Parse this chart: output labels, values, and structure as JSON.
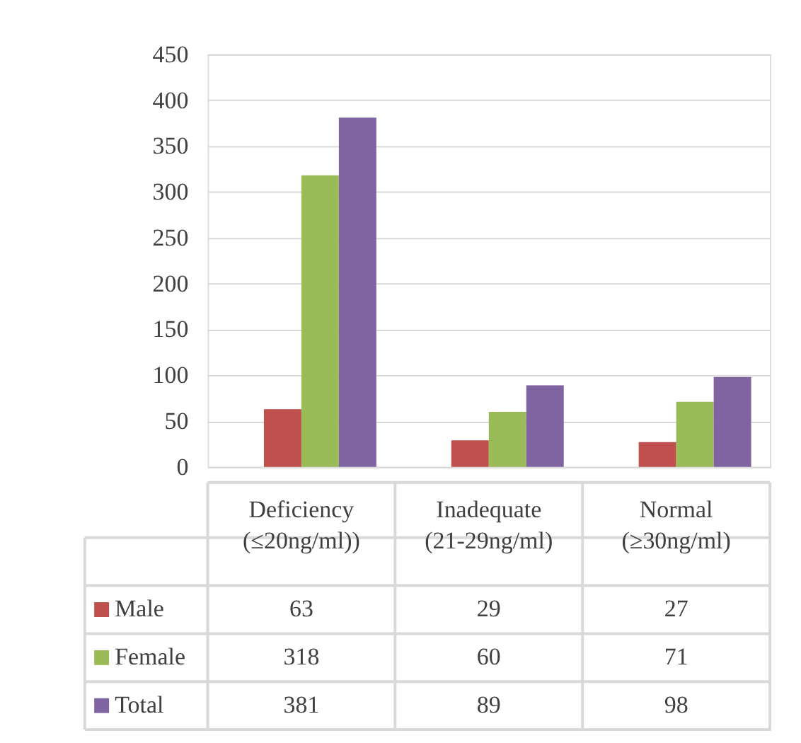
{
  "chart_data": {
    "type": "bar",
    "categories": [
      "Deficiency (≤20ng/ml))",
      "Inadequate (21-29ng/ml)",
      "Normal (≥30ng/ml)"
    ],
    "series": [
      {
        "color": "#4f81bd",
        "values": [
          null,
          null,
          null
        ]
      },
      {
        "name": "Male",
        "color": "#c0504d",
        "values": [
          63,
          29,
          27
        ]
      },
      {
        "name": "Female",
        "color": "#9bbb59",
        "values": [
          318,
          60,
          71
        ]
      },
      {
        "name": "Total",
        "color": "#8064a2",
        "values": [
          381,
          89,
          98
        ]
      }
    ],
    "ylim": [
      0,
      450
    ],
    "yticks": [
      0,
      50,
      100,
      150,
      200,
      250,
      300,
      350,
      400,
      450
    ],
    "grid": "y",
    "data_labels": true,
    "legend": "bottom",
    "stacked": false
  }
}
